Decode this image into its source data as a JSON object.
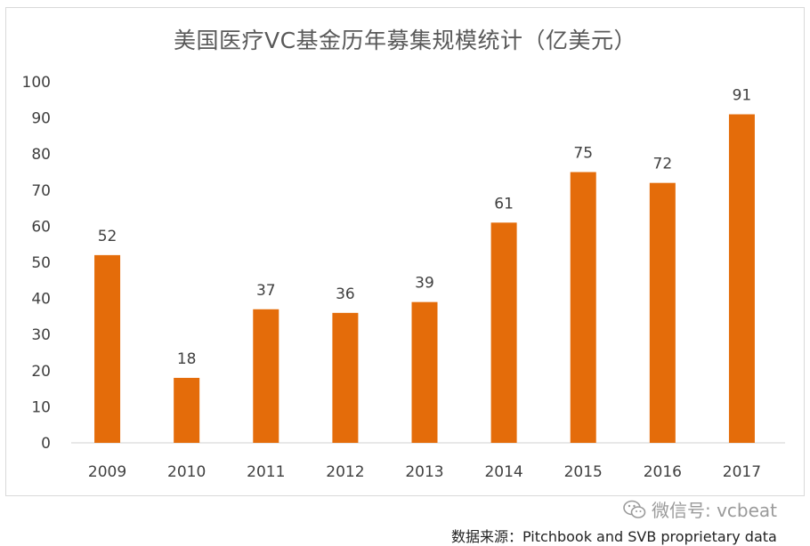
{
  "chart_data": {
    "type": "bar",
    "title": "美国医疗VC基金历年募集规模统计（亿美元）",
    "categories": [
      "2009",
      "2010",
      "2011",
      "2012",
      "2013",
      "2014",
      "2015",
      "2016",
      "2017"
    ],
    "values": [
      52,
      18,
      37,
      36,
      39,
      61,
      75,
      72,
      91
    ],
    "ylim": [
      0,
      100
    ],
    "yticks": [
      0,
      10,
      20,
      30,
      40,
      50,
      60,
      70,
      80,
      90,
      100
    ],
    "xlabel": "",
    "ylabel": "",
    "bar_color": "#E46C0A",
    "grid": false,
    "legend": "none",
    "data_labels": true
  },
  "watermark": {
    "text": "微信号: vcbeat",
    "icon": "wechat-icon"
  },
  "source": "数据来源：Pitchbook and SVB proprietary data"
}
